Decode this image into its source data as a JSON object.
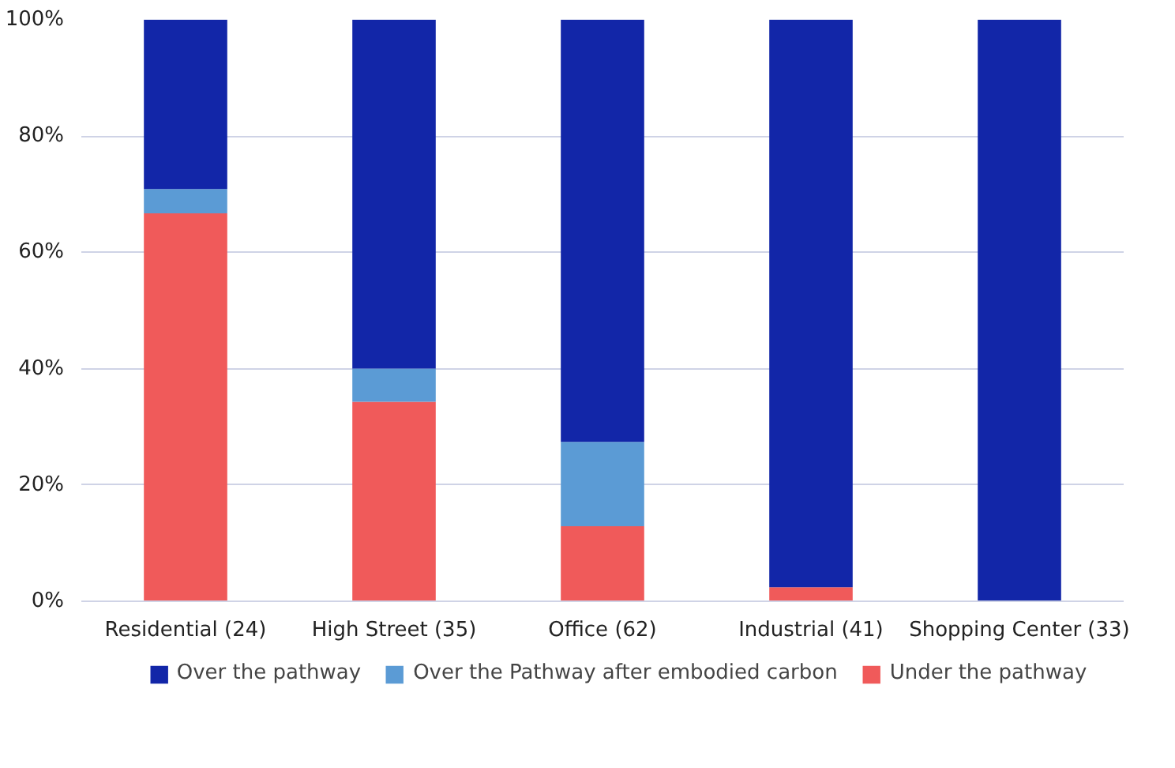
{
  "chart_data": {
    "type": "bar",
    "stacked": true,
    "categories": [
      "Residential (24)",
      "High Street (35)",
      "Office (62)",
      "Industrial (41)",
      "Shopping Center (33)"
    ],
    "series": [
      {
        "name": "Under the pathway",
        "color": "#f05a5a",
        "values": [
          66.7,
          34.3,
          12.9,
          2.4,
          0
        ]
      },
      {
        "name": "Over the Pathway after embodied carbon",
        "color": "#5b9bd5",
        "values": [
          4.2,
          5.7,
          14.5,
          0,
          0
        ]
      },
      {
        "name": "Over the pathway",
        "color": "#1226a8",
        "values": [
          29.1,
          60.0,
          72.6,
          97.6,
          100
        ]
      }
    ],
    "ylim": [
      0,
      100
    ],
    "yticks": [
      {
        "value": 0,
        "label": "0%"
      },
      {
        "value": 20,
        "label": "20%"
      },
      {
        "value": 40,
        "label": "40%"
      },
      {
        "value": 60,
        "label": "60%"
      },
      {
        "value": 80,
        "label": "80%"
      },
      {
        "value": 100,
        "label": "100%"
      }
    ],
    "grid": "y",
    "legend": "bottom"
  }
}
